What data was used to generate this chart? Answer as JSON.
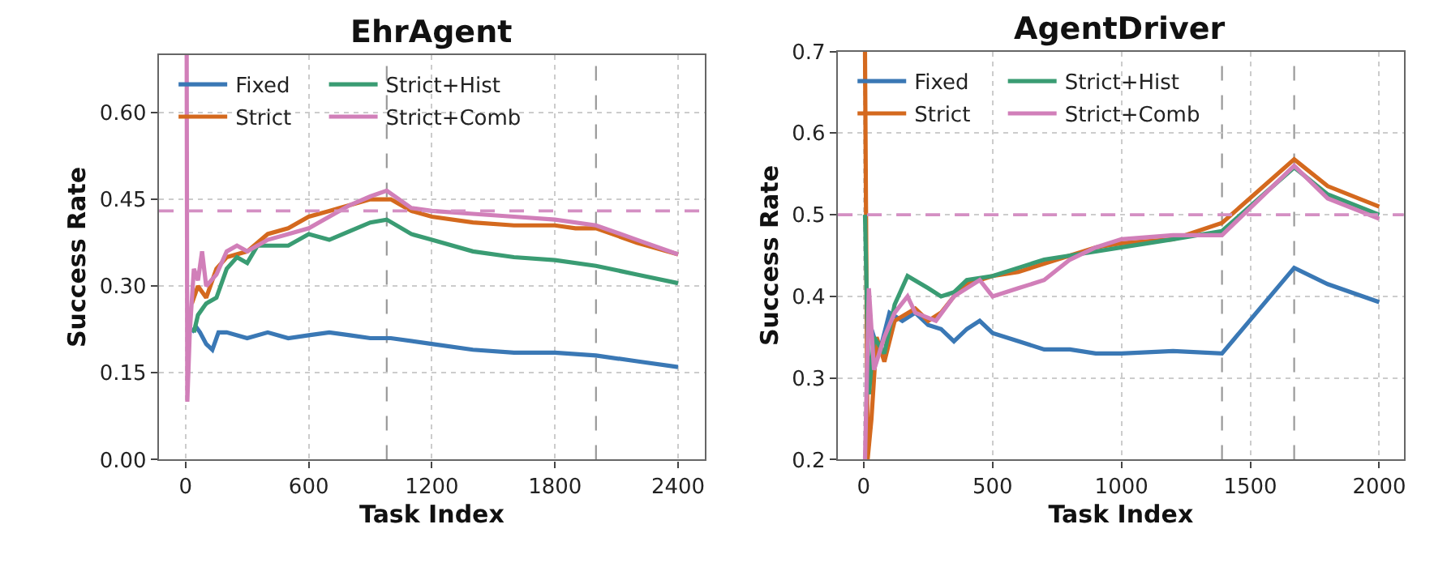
{
  "chart_data": [
    {
      "type": "line",
      "title": "EhrAgent",
      "xlabel": "Task Index",
      "ylabel": "Success Rate",
      "xlim": [
        -130,
        2530
      ],
      "ylim": [
        0,
        0.7
      ],
      "xticks": [
        0,
        600,
        1200,
        1800,
        2400
      ],
      "yticks": [
        {
          "value": 0,
          "label": "0.00"
        },
        {
          "value": 0.15,
          "label": "0.15"
        },
        {
          "value": 0.3,
          "label": "0.30"
        },
        {
          "value": 0.45,
          "label": "0.45"
        },
        {
          "value": 0.6,
          "label": "0.60"
        }
      ],
      "grid": true,
      "legend": "top left",
      "line_style": "solid",
      "series": [
        {
          "name": "Fixed",
          "color": "#3a78b5",
          "x": [
            30,
            50,
            70,
            100,
            130,
            160,
            200,
            300,
            400,
            500,
            600,
            700,
            800,
            900,
            1000,
            1200,
            1400,
            1600,
            1800,
            2000,
            2200,
            2400
          ],
          "values": [
            0.22,
            0.23,
            0.22,
            0.2,
            0.19,
            0.22,
            0.22,
            0.21,
            0.22,
            0.21,
            0.215,
            0.22,
            0.215,
            0.21,
            0.21,
            0.2,
            0.19,
            0.185,
            0.185,
            0.18,
            0.17,
            0.16
          ]
        },
        {
          "name": "Strict",
          "color": "#d4691e",
          "x": [
            30,
            60,
            100,
            150,
            200,
            300,
            400,
            500,
            600,
            700,
            800,
            900,
            1000,
            1100,
            1200,
            1400,
            1600,
            1800,
            1900,
            2000,
            2200,
            2400
          ],
          "values": [
            0.27,
            0.3,
            0.28,
            0.33,
            0.35,
            0.36,
            0.39,
            0.4,
            0.42,
            0.43,
            0.44,
            0.45,
            0.45,
            0.43,
            0.42,
            0.41,
            0.405,
            0.405,
            0.4,
            0.4,
            0.375,
            0.355
          ]
        },
        {
          "name": "Strict+Hist",
          "color": "#3a9c73",
          "x": [
            40,
            60,
            100,
            150,
            200,
            250,
            300,
            350,
            450,
            500,
            600,
            700,
            800,
            900,
            980,
            1100,
            1200,
            1400,
            1600,
            1800,
            2000,
            2200,
            2400
          ],
          "values": [
            0.22,
            0.25,
            0.27,
            0.28,
            0.33,
            0.35,
            0.34,
            0.37,
            0.37,
            0.37,
            0.39,
            0.38,
            0.395,
            0.41,
            0.415,
            0.39,
            0.38,
            0.36,
            0.35,
            0.345,
            0.335,
            0.32,
            0.305
          ]
        },
        {
          "name": "Strict+Comb",
          "color": "#d17fb9",
          "x": [
            5,
            8,
            20,
            40,
            60,
            80,
            100,
            150,
            200,
            250,
            300,
            400,
            500,
            600,
            700,
            800,
            900,
            980,
            1100,
            1200,
            1400,
            1600,
            1800,
            2000,
            2200,
            2400
          ],
          "values": [
            0.7,
            0.1,
            0.22,
            0.33,
            0.31,
            0.36,
            0.3,
            0.32,
            0.36,
            0.37,
            0.36,
            0.38,
            0.39,
            0.4,
            0.42,
            0.44,
            0.455,
            0.465,
            0.435,
            0.43,
            0.425,
            0.42,
            0.415,
            0.405,
            0.38,
            0.355
          ]
        }
      ],
      "ref_lines": [
        {
          "axis": "y",
          "value": 0.43,
          "color": "#d48fc3",
          "line_style": "dashed"
        },
        {
          "axis": "x",
          "value": 980,
          "color": "#999999",
          "line_style": "dashed"
        },
        {
          "axis": "x",
          "value": 2000,
          "color": "#999999",
          "line_style": "dashed"
        }
      ]
    },
    {
      "type": "line",
      "title": "AgentDriver",
      "xlabel": "Task Index",
      "ylabel": "Success Rate",
      "xlim": [
        -100,
        2095
      ],
      "ylim": [
        0.2,
        0.7
      ],
      "xticks": [
        0,
        500,
        1000,
        1500,
        2000
      ],
      "yticks": [
        0.2,
        0.3,
        0.4,
        0.5,
        0.6,
        0.7
      ],
      "grid": true,
      "legend": "top left",
      "line_style": "solid",
      "series": [
        {
          "name": "Fixed",
          "color": "#3a78b5",
          "x": [
            30,
            60,
            100,
            150,
            200,
            250,
            300,
            350,
            400,
            450,
            500,
            600,
            700,
            800,
            900,
            1000,
            1200,
            1390,
            1670,
            1800,
            2000
          ],
          "values": [
            0.36,
            0.33,
            0.38,
            0.37,
            0.38,
            0.365,
            0.36,
            0.345,
            0.36,
            0.37,
            0.355,
            0.345,
            0.335,
            0.335,
            0.33,
            0.33,
            0.333,
            0.33,
            0.435,
            0.415,
            0.393
          ]
        },
        {
          "name": "Strict",
          "color": "#d4691e",
          "x": [
            5,
            15,
            30,
            50,
            80,
            120,
            200,
            250,
            300,
            350,
            400,
            500,
            600,
            700,
            800,
            900,
            1000,
            1200,
            1390,
            1670,
            1800,
            2000
          ],
          "values": [
            0.7,
            0.2,
            0.25,
            0.35,
            0.32,
            0.37,
            0.385,
            0.37,
            0.38,
            0.4,
            0.415,
            0.425,
            0.43,
            0.44,
            0.45,
            0.46,
            0.465,
            0.47,
            0.49,
            0.568,
            0.535,
            0.51
          ]
        },
        {
          "name": "Strict+Hist",
          "color": "#3a9c73",
          "x": [
            5,
            20,
            40,
            80,
            120,
            170,
            250,
            300,
            350,
            400,
            500,
            600,
            700,
            800,
            900,
            1000,
            1200,
            1390,
            1670,
            1800,
            2000
          ],
          "values": [
            0.5,
            0.28,
            0.35,
            0.33,
            0.39,
            0.425,
            0.41,
            0.4,
            0.405,
            0.42,
            0.425,
            0.435,
            0.445,
            0.45,
            0.455,
            0.46,
            0.47,
            0.48,
            0.558,
            0.525,
            0.5
          ]
        },
        {
          "name": "Strict+Comb",
          "color": "#d17fb9",
          "x": [
            5,
            20,
            40,
            80,
            120,
            170,
            200,
            280,
            350,
            450,
            500,
            600,
            700,
            800,
            900,
            1000,
            1200,
            1390,
            1670,
            1800,
            2000
          ],
          "values": [
            0.2,
            0.41,
            0.31,
            0.35,
            0.38,
            0.4,
            0.38,
            0.37,
            0.4,
            0.42,
            0.4,
            0.41,
            0.42,
            0.445,
            0.46,
            0.47,
            0.475,
            0.475,
            0.56,
            0.52,
            0.495
          ]
        }
      ],
      "ref_lines": [
        {
          "axis": "y",
          "value": 0.5,
          "color": "#d48fc3",
          "line_style": "dashed"
        },
        {
          "axis": "x",
          "value": 1390,
          "color": "#999999",
          "line_style": "dashed"
        },
        {
          "axis": "x",
          "value": 1670,
          "color": "#999999",
          "line_style": "dashed"
        }
      ]
    }
  ]
}
